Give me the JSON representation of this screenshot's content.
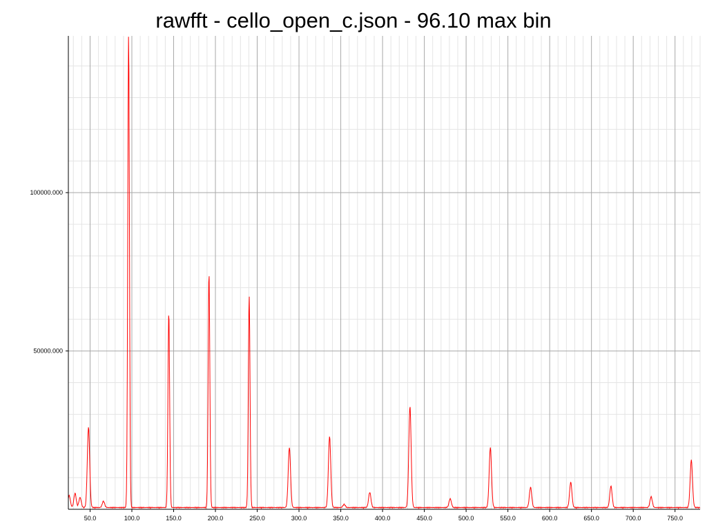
{
  "chart_data": {
    "type": "line",
    "title": "rawfft - cello_open_c.json - 96.10 max bin",
    "xlabel": "",
    "ylabel": "",
    "xlim": [
      24,
      780
    ],
    "ylim": [
      0,
      149500
    ],
    "grid": true,
    "x_ticks": [
      50,
      100,
      150,
      200,
      250,
      300,
      350,
      400,
      450,
      500,
      550,
      600,
      650,
      700,
      750
    ],
    "x_tick_labels": [
      "50.0",
      "100.0",
      "150.0",
      "200.0",
      "250.0",
      "300.0",
      "350.0",
      "400.0",
      "450.0",
      "500.0",
      "550.0",
      "600.0",
      "650.0",
      "700.0",
      "750.0"
    ],
    "y_ticks": [
      50000,
      100000
    ],
    "y_tick_labels": [
      "50000.000",
      "100000.000"
    ],
    "series": [
      {
        "color": "#ff0000",
        "peaks": [
          {
            "x": 25,
            "y": 3800
          },
          {
            "x": 32,
            "y": 4500
          },
          {
            "x": 38,
            "y": 3200
          },
          {
            "x": 48.1,
            "y": 25500
          },
          {
            "x": 66,
            "y": 2000
          },
          {
            "x": 96.1,
            "y": 149500
          },
          {
            "x": 144.2,
            "y": 62000
          },
          {
            "x": 192.3,
            "y": 74500
          },
          {
            "x": 240.4,
            "y": 67000
          },
          {
            "x": 288.5,
            "y": 19000
          },
          {
            "x": 336.6,
            "y": 22500
          },
          {
            "x": 354,
            "y": 1000
          },
          {
            "x": 384.7,
            "y": 4800
          },
          {
            "x": 432.8,
            "y": 32000
          },
          {
            "x": 480.9,
            "y": 2800
          },
          {
            "x": 529,
            "y": 19000
          },
          {
            "x": 577.1,
            "y": 6400
          },
          {
            "x": 625.2,
            "y": 8000
          },
          {
            "x": 673.3,
            "y": 6800
          },
          {
            "x": 721.4,
            "y": 3400
          },
          {
            "x": 769.5,
            "y": 15000
          }
        ]
      }
    ]
  }
}
